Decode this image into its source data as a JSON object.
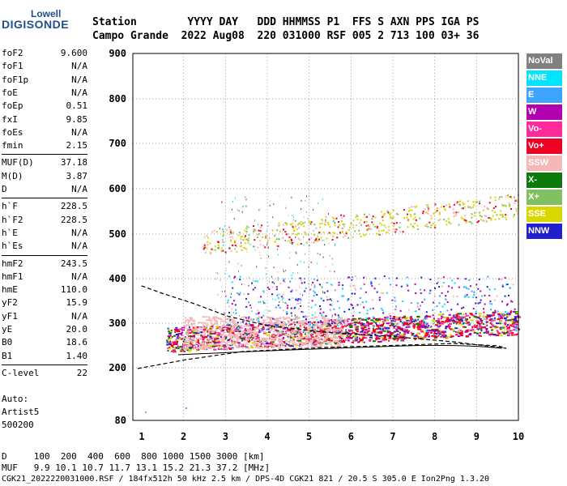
{
  "logo": {
    "line1": "Lowell",
    "line2": "DIGISONDE"
  },
  "header": {
    "row1": "Station        YYYY DAY   DDD HHMMSS P1  FFS S AXN PPS IGA PS",
    "row2": "Campo Grande  2022 Aug08  220 031000 RSF 005 2 713 100 03+ 36"
  },
  "params": [
    {
      "label": "foF2",
      "value": "9.600"
    },
    {
      "label": "foF1",
      "value": "N/A"
    },
    {
      "label": "foF1p",
      "value": "N/A"
    },
    {
      "label": "foE",
      "value": "N/A"
    },
    {
      "label": "foEp",
      "value": "0.51"
    },
    {
      "label": "fxI",
      "value": "9.85"
    },
    {
      "label": "foEs",
      "value": "N/A"
    },
    {
      "label": "fmin",
      "value": "2.15"
    },
    {
      "label": "MUF(D)",
      "value": "37.18"
    },
    {
      "label": "M(D)",
      "value": "3.87"
    },
    {
      "label": "D",
      "value": "N/A"
    },
    {
      "label": "h`F",
      "value": "228.5"
    },
    {
      "label": "h`F2",
      "value": "228.5"
    },
    {
      "label": "h`E",
      "value": "N/A"
    },
    {
      "label": "h`Es",
      "value": "N/A"
    },
    {
      "label": "hmF2",
      "value": "243.5"
    },
    {
      "label": "hmF1",
      "value": "N/A"
    },
    {
      "label": "hmE",
      "value": "110.0"
    },
    {
      "label": "yF2",
      "value": "15.9"
    },
    {
      "label": "yF1",
      "value": "N/A"
    },
    {
      "label": "yE",
      "value": "20.0"
    },
    {
      "label": "B0",
      "value": "18.6"
    },
    {
      "label": "B1",
      "value": "1.40"
    },
    {
      "label": "C-level",
      "value": "22"
    }
  ],
  "auto": {
    "line1": "Auto:",
    "line2": "Artist5",
    "line3": "500200"
  },
  "legend": [
    {
      "label": "NoVal",
      "color": "#808080"
    },
    {
      "label": "NNE",
      "color": "#00e5ff"
    },
    {
      "label": "E",
      "color": "#3da5ff"
    },
    {
      "label": "W",
      "color": "#b000b0"
    },
    {
      "label": "Vo-",
      "color": "#ff2a9a"
    },
    {
      "label": "Vo+",
      "color": "#ee0022"
    },
    {
      "label": "SSW",
      "color": "#f4b8b8"
    },
    {
      "label": "X-",
      "color": "#0a7a0a"
    },
    {
      "label": "X+",
      "color": "#80c060"
    },
    {
      "label": "SSE",
      "color": "#d8d800"
    },
    {
      "label": "NNW",
      "color": "#2020cc"
    }
  ],
  "footer": {
    "d_row": "D     100  200  400  600  800 1000 1500 3000 [km]",
    "muf_row": "MUF   9.9 10.1 10.7 11.7 13.1 15.2 21.3 37.2 [MHz]",
    "file_row": "CGK21_2022220031000.RSF / 184fx512h 50 kHz 2.5 km / DPS-4D CGK21 821 / 20.5 S 305.0 E Ion2Png 1.3.20"
  },
  "chart_data": {
    "type": "scatter",
    "x_ticks": [
      "1",
      "2",
      "3",
      "4",
      "5",
      "6",
      "7",
      "8",
      "9",
      "10"
    ],
    "y_ticks": [
      "80",
      "200",
      "300",
      "400",
      "500",
      "600",
      "700",
      "800",
      "900"
    ],
    "xlim": [
      1,
      10
    ],
    "ylim": [
      80,
      900
    ],
    "grid": true
  }
}
